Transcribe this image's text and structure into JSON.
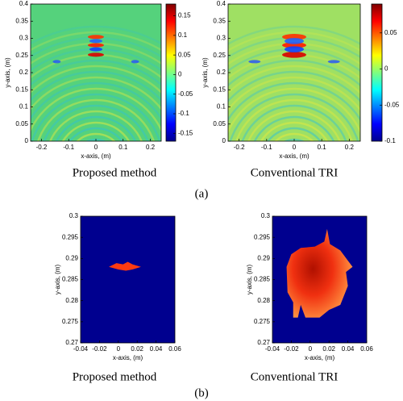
{
  "chart_data": [
    {
      "type": "heatmap",
      "caption": "Proposed method",
      "xlabel": "x-axis, (m)",
      "ylabel": "y-axis, (m)",
      "xlim": [
        -0.24,
        0.24
      ],
      "xticks": [
        -0.2,
        -0.1,
        0,
        0.1,
        0.2
      ],
      "ylim": [
        0,
        0.4
      ],
      "yticks": [
        0,
        0.05,
        0.1,
        0.15,
        0.2,
        0.25,
        0.3,
        0.35,
        0.4
      ],
      "colormap": "jet",
      "clim": [
        -0.17,
        0.18
      ],
      "cticks": [
        -0.15,
        -0.1,
        -0.05,
        0,
        0.05,
        0.1,
        0.15
      ]
    },
    {
      "type": "heatmap",
      "caption": "Conventional TRI",
      "xlabel": "x-axis, (m)",
      "ylabel": "y-axis, (m)",
      "xlim": [
        -0.24,
        0.24
      ],
      "xticks": [
        -0.2,
        -0.1,
        0,
        0.1,
        0.2
      ],
      "ylim": [
        0,
        0.4
      ],
      "yticks": [
        0,
        0.05,
        0.1,
        0.15,
        0.2,
        0.25,
        0.3,
        0.35,
        0.4
      ],
      "colormap": "jet",
      "clim": [
        -0.1,
        0.09
      ],
      "cticks": [
        -0.1,
        -0.05,
        0,
        0.05
      ]
    },
    {
      "type": "heatmap",
      "caption": "Proposed method",
      "xlabel": "x-axis, (m)",
      "ylabel": "y-axis, (m)",
      "xlim": [
        -0.04,
        0.06
      ],
      "xticks": [
        -0.04,
        -0.02,
        0,
        0.02,
        0.04,
        0.06
      ],
      "ylim": [
        0.27,
        0.3
      ],
      "yticks": [
        0.27,
        0.275,
        0.28,
        0.285,
        0.29,
        0.295,
        0.3
      ]
    },
    {
      "type": "heatmap",
      "caption": "Conventional TRI",
      "xlabel": "x-axis, (m)",
      "ylabel": "y-axis, (m)",
      "xlim": [
        -0.04,
        0.06
      ],
      "xticks": [
        -0.04,
        -0.02,
        0,
        0.02,
        0.04,
        0.06
      ],
      "ylim": [
        0.27,
        0.3
      ],
      "yticks": [
        0.27,
        0.275,
        0.28,
        0.285,
        0.29,
        0.295,
        0.3
      ]
    }
  ],
  "panel_labels": [
    "(a)",
    "(b)"
  ]
}
